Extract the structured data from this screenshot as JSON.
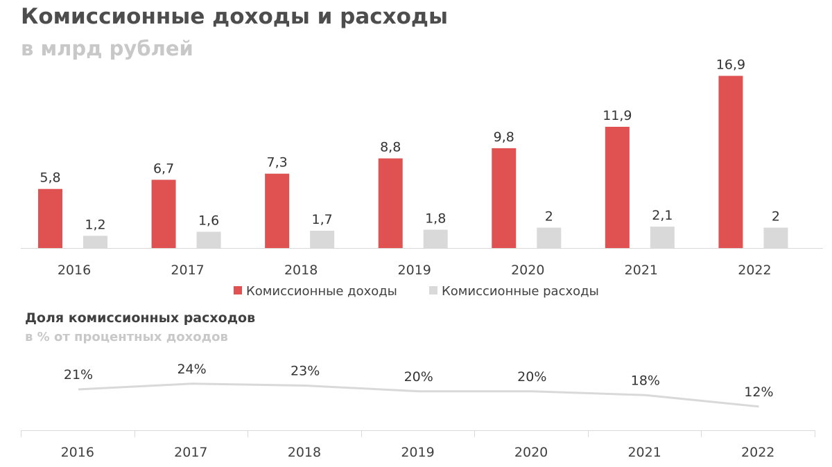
{
  "chart_data": [
    {
      "type": "bar",
      "title": "Комиссионные доходы и расходы",
      "subtitle": "в млрд рублей",
      "categories": [
        "2016",
        "2017",
        "2018",
        "2019",
        "2020",
        "2021",
        "2022"
      ],
      "series": [
        {
          "name": "Комиссионные доходы",
          "color": "#e05252",
          "values": [
            5.8,
            6.7,
            7.3,
            8.8,
            9.8,
            11.9,
            16.9
          ],
          "labels": [
            "5,8",
            "6,7",
            "7,3",
            "8,8",
            "9,8",
            "11,9",
            "16,9"
          ]
        },
        {
          "name": "Комиссионные расходы",
          "color": "#d9d9d9",
          "values": [
            1.2,
            1.6,
            1.7,
            1.8,
            2,
            2.1,
            2
          ],
          "labels": [
            "1,2",
            "1,6",
            "1,7",
            "1,8",
            "2",
            "2,1",
            "2"
          ]
        }
      ],
      "ylim": [
        0,
        17
      ],
      "grid": false,
      "legend": "bottom"
    },
    {
      "type": "line",
      "title": "Доля комиссионных расходов",
      "subtitle": "в % от процентных доходов",
      "categories": [
        "2016",
        "2017",
        "2018",
        "2019",
        "2020",
        "2021",
        "2022"
      ],
      "series": [
        {
          "color": "#d9d9d9",
          "values": [
            21,
            24,
            23,
            20,
            20,
            18,
            12
          ],
          "labels": [
            "21%",
            "24%",
            "23%",
            "20%",
            "20%",
            "18%",
            "12%"
          ]
        }
      ],
      "ylim": [
        0,
        24
      ],
      "grid": false,
      "legend": "none"
    }
  ]
}
